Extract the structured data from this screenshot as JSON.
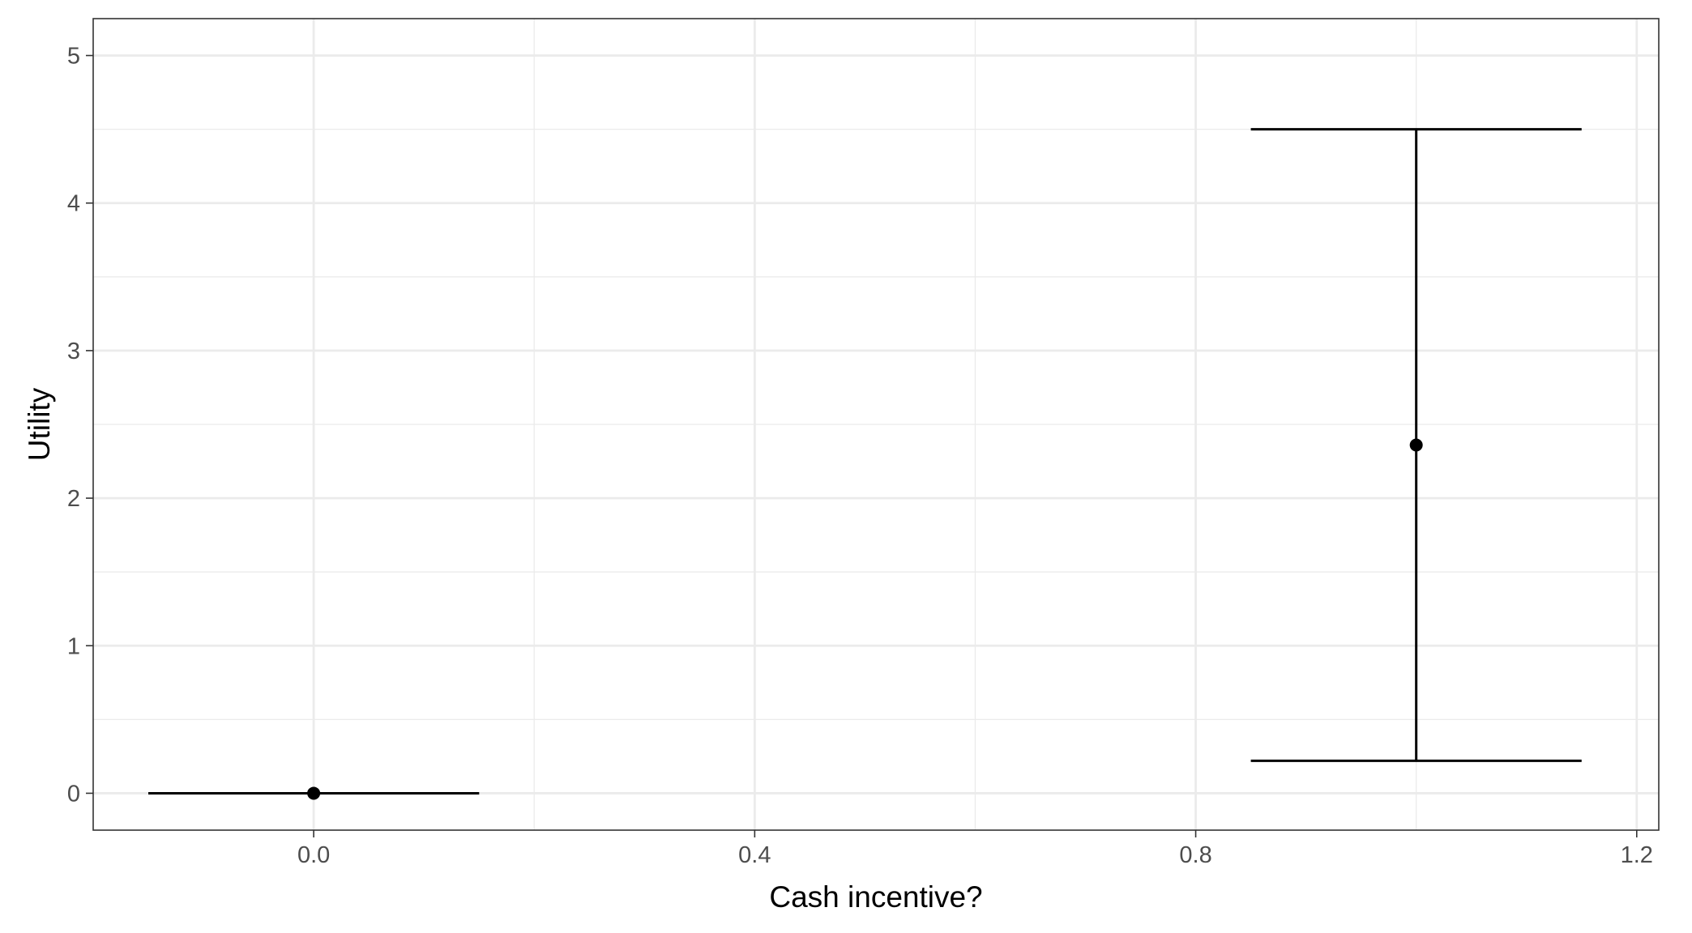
{
  "chart_data": {
    "type": "scatter",
    "title": "",
    "xlabel": "Cash incentive?",
    "ylabel": "Utility",
    "xlim": [
      -0.2,
      1.22
    ],
    "ylim": [
      -0.25,
      5.25
    ],
    "x_ticks": [
      0.0,
      0.4,
      0.8,
      1.2
    ],
    "x_tick_labels": [
      "0.0",
      "0.4",
      "0.8",
      "1.2"
    ],
    "y_ticks": [
      0,
      1,
      2,
      3,
      4,
      5
    ],
    "y_tick_labels": [
      "0",
      "1",
      "2",
      "3",
      "4",
      "5"
    ],
    "grid": true,
    "legend": "none",
    "errorbar_halfwidth": 0.15,
    "points": [
      {
        "x": 0,
        "y": 0,
        "ymin": 0,
        "ymax": 0
      },
      {
        "x": 1,
        "y": 2.36,
        "ymin": 0.22,
        "ymax": 4.5
      }
    ],
    "colors": {
      "points": "#000000",
      "grid_major": "#ebebeb",
      "grid_minor": "#ebebeb",
      "panel_border": "#333333"
    }
  }
}
